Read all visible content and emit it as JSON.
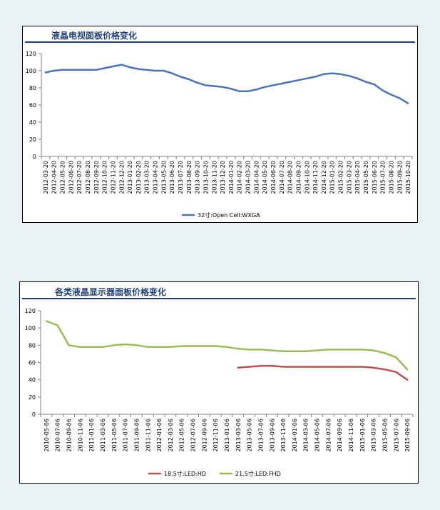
{
  "chart_data": [
    {
      "type": "line",
      "title": "液晶电视面板价格变化",
      "ylim": [
        0,
        120
      ],
      "yticks": [
        0,
        20,
        40,
        60,
        80,
        100,
        120
      ],
      "grid": false,
      "legend_position": "bottom",
      "x": [
        "2012-03-20",
        "2012-04-20",
        "2012-05-20",
        "2012-06-20",
        "2012-07-20",
        "2012-08-20",
        "2012-09-20",
        "2012-10-20",
        "2012-11-20",
        "2012-12-20",
        "2013-01-20",
        "2013-02-20",
        "2013-03-20",
        "2013-04-20",
        "2013-05-20",
        "2013-06-20",
        "2013-07-20",
        "2013-08-20",
        "2013-09-20",
        "2013-10-20",
        "2013-11-20",
        "2013-12-20",
        "2014-01-20",
        "2014-02-20",
        "2014-03-20",
        "2014-04-20",
        "2014-05-20",
        "2014-06-20",
        "2014-07-20",
        "2014-08-20",
        "2014-09-20",
        "2014-10-20",
        "2014-11-20",
        "2014-12-20",
        "2015-01-20",
        "2015-02-20",
        "2015-03-20",
        "2015-04-20",
        "2015-05-20",
        "2015-06-20",
        "2015-07-20",
        "2015-08-20",
        "2015-09-20",
        "2015-10-20"
      ],
      "series": [
        {
          "name": "32寸:Open Cell:WXGA",
          "color": "#4a74b8",
          "values": [
            98,
            100,
            101,
            101,
            101,
            101,
            101,
            103,
            105,
            107,
            104,
            102,
            101,
            100,
            100,
            97,
            93,
            90,
            86,
            83,
            82,
            81,
            79,
            76,
            76,
            78,
            81,
            83,
            85,
            87,
            89,
            91,
            93,
            96,
            97,
            96,
            94,
            91,
            87,
            84,
            77,
            72,
            68,
            62
          ]
        }
      ]
    },
    {
      "type": "line",
      "title": "各类液晶显示器面板价格变化",
      "ylim": [
        0,
        120
      ],
      "yticks": [
        0,
        20,
        40,
        60,
        80,
        100,
        120
      ],
      "grid": false,
      "legend_position": "bottom",
      "x": [
        "2010-05-06",
        "2010-07-06",
        "2010-09-06",
        "2010-11-06",
        "2011-01-06",
        "2011-03-06",
        "2011-05-06",
        "2011-07-06",
        "2011-09-06",
        "2011-11-06",
        "2012-01-06",
        "2012-03-06",
        "2012-05-06",
        "2012-07-06",
        "2012-09-06",
        "2012-11-06",
        "2013-01-06",
        "2013-03-06",
        "2013-05-06",
        "2013-07-06",
        "2013-09-06",
        "2013-11-06",
        "2014-01-06",
        "2014-03-06",
        "2014-05-06",
        "2014-07-06",
        "2014-09-06",
        "2014-11-06",
        "2015-01-06",
        "2015-03-06",
        "2015-05-06",
        "2015-07-06",
        "2015-09-06"
      ],
      "series": [
        {
          "name": "18.5寸:LED:HD",
          "color": "#c0504d",
          "values": [
            null,
            null,
            null,
            null,
            null,
            null,
            null,
            null,
            null,
            null,
            null,
            null,
            null,
            null,
            null,
            null,
            null,
            54,
            55,
            56,
            56,
            55,
            55,
            55,
            55,
            55,
            55,
            55,
            55,
            54,
            52,
            49,
            40
          ]
        },
        {
          "name": "21.5寸:LED:FHD",
          "color": "#9bbb59",
          "values": [
            108,
            103,
            80,
            78,
            78,
            78,
            80,
            81,
            80,
            78,
            78,
            78,
            79,
            79,
            79,
            79,
            78,
            76,
            75,
            75,
            74,
            73,
            73,
            73,
            74,
            75,
            75,
            75,
            75,
            74,
            71,
            66,
            52
          ]
        }
      ]
    }
  ]
}
